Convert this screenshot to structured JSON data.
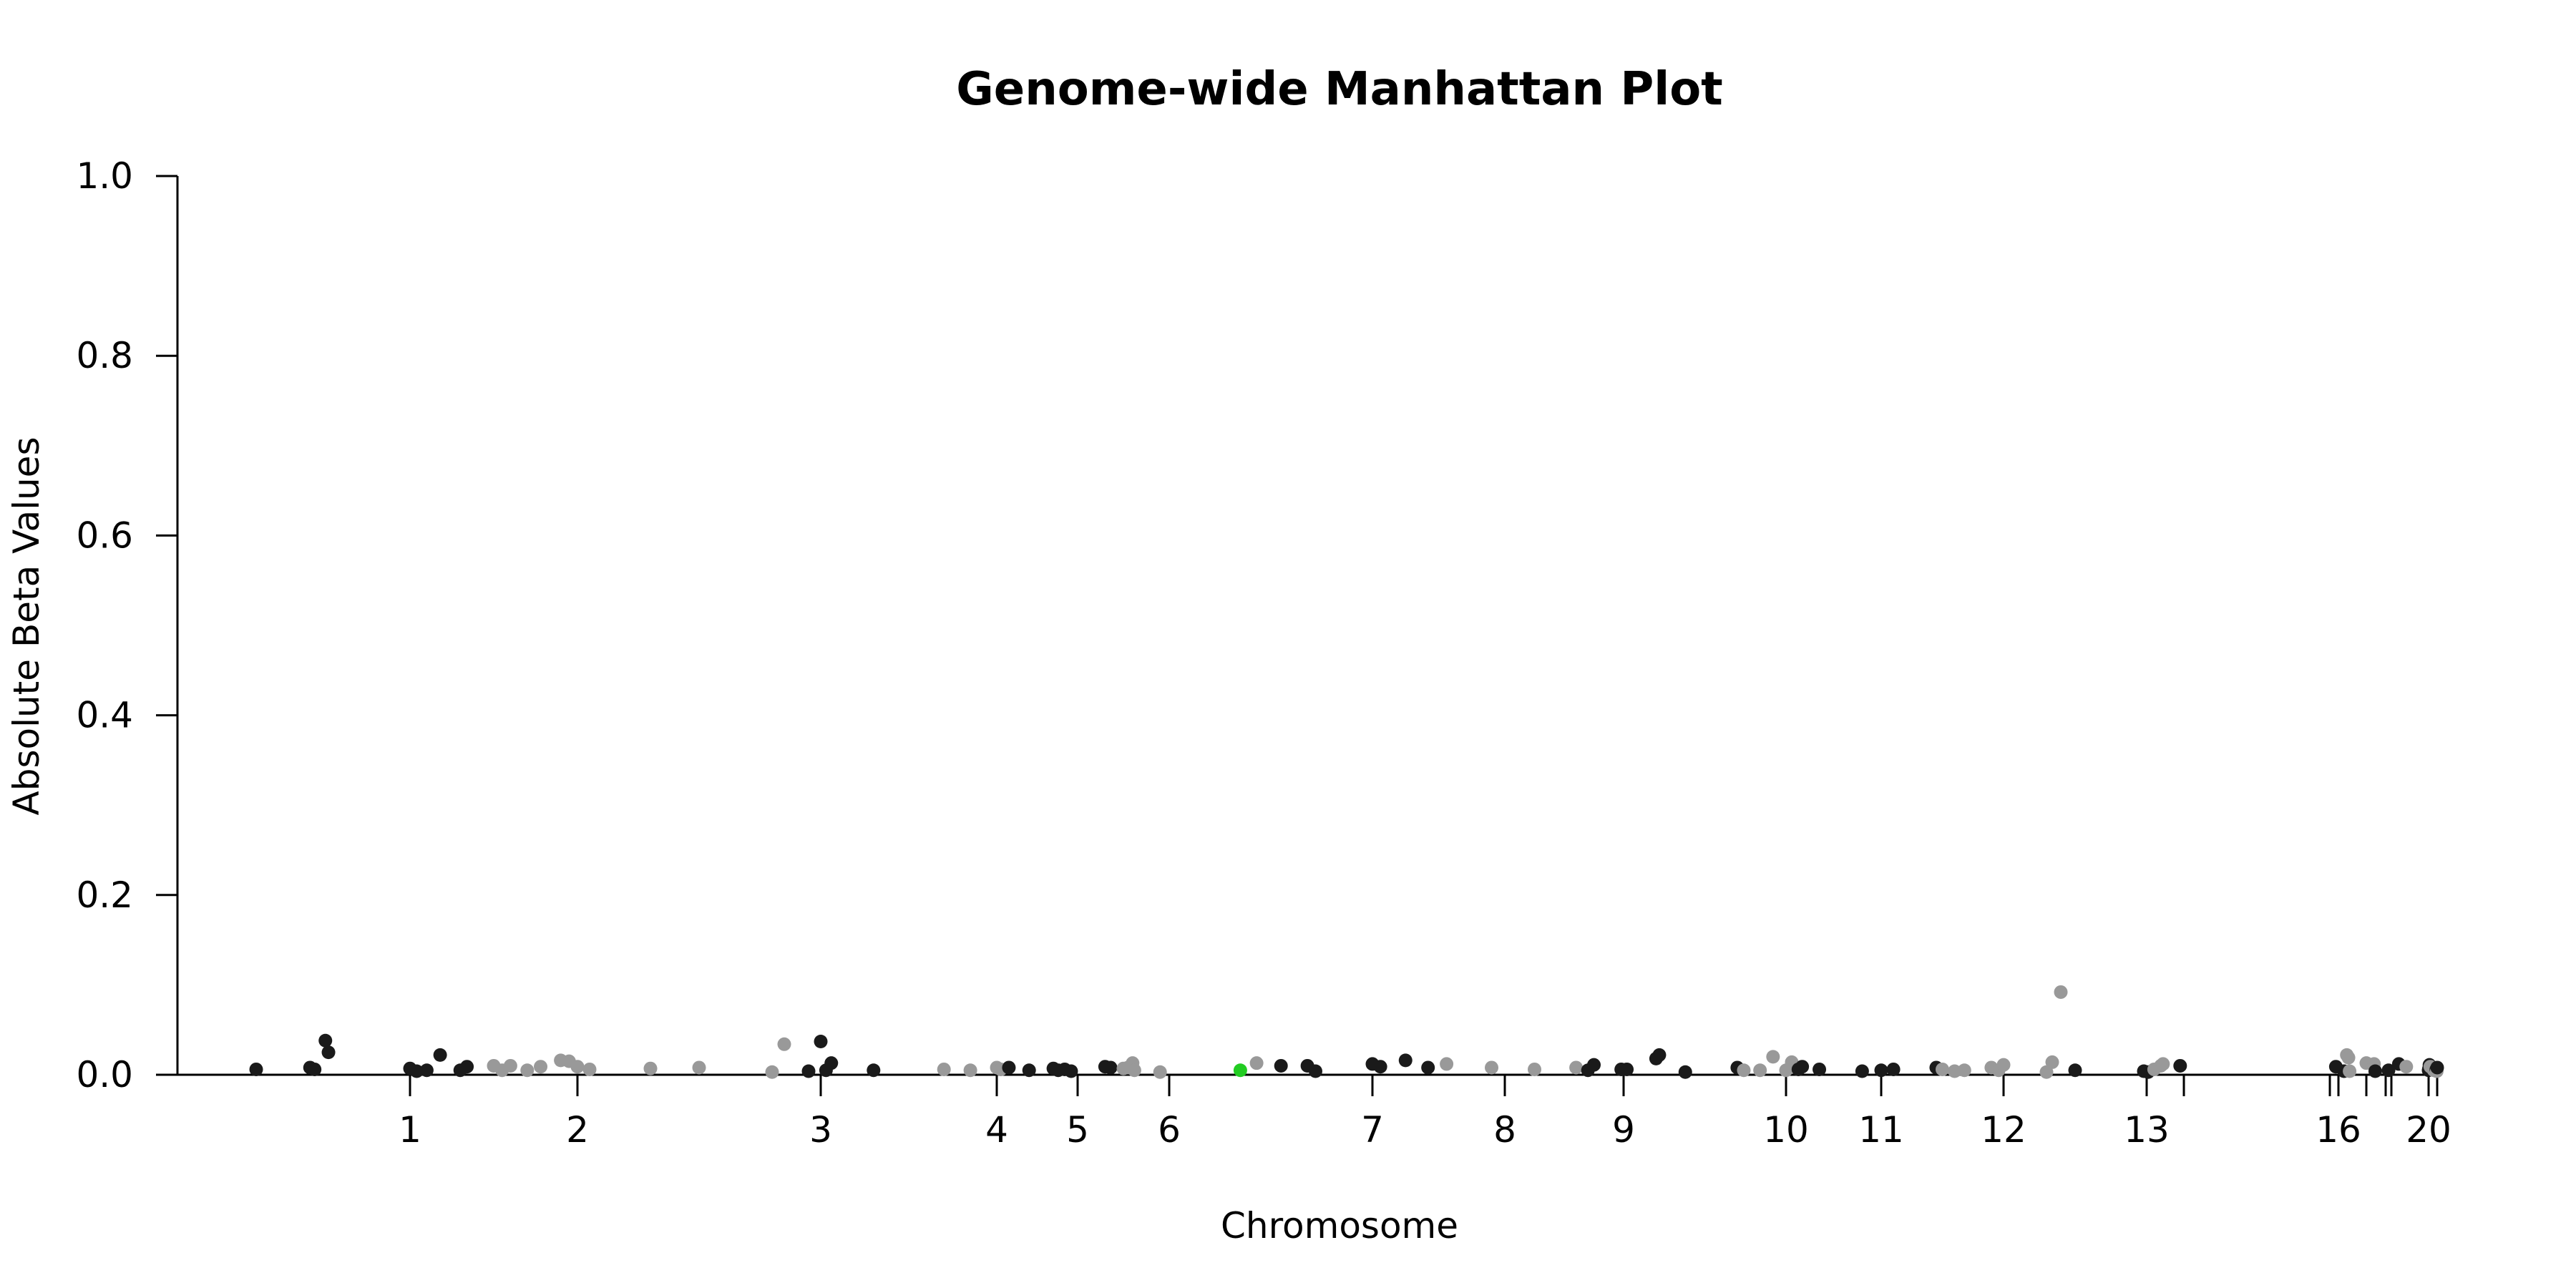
{
  "chart_data": {
    "type": "scatter",
    "title": "Genome-wide Manhattan Plot",
    "xlabel": "Chromosome",
    "ylabel": "Absolute Beta Values",
    "ylim": [
      0,
      1.0
    ],
    "yticks": [
      "0.0",
      "0.2",
      "0.4",
      "0.6",
      "0.8",
      "1.0"
    ],
    "xticks": [
      {
        "label": "1",
        "pos": 1
      },
      {
        "label": "2",
        "pos": 2
      },
      {
        "label": "3",
        "pos": 3
      },
      {
        "label": "4",
        "pos": 4
      },
      {
        "label": "5",
        "pos": 5
      },
      {
        "label": "6",
        "pos": 6
      },
      {
        "label": "7",
        "pos": 7
      },
      {
        "label": "8",
        "pos": 8
      },
      {
        "label": "9",
        "pos": 9
      },
      {
        "label": "10",
        "pos": 10
      },
      {
        "label": "11",
        "pos": 11
      },
      {
        "label": "12",
        "pos": 12
      },
      {
        "label": "13",
        "pos": 13
      },
      {
        "label": "",
        "pos": 14
      },
      {
        "label": "",
        "pos": 15
      },
      {
        "label": "16",
        "pos": 16
      },
      {
        "label": "",
        "pos": 17
      },
      {
        "label": "",
        "pos": 18
      },
      {
        "label": "",
        "pos": 19
      },
      {
        "label": "20",
        "pos": 20
      },
      {
        "label": "",
        "pos": 21
      }
    ],
    "colors": {
      "dark": "#1a1a1a",
      "light": "#999999",
      "highlight": "#22cc22"
    },
    "grid": false,
    "points": [
      {
        "x": 0.0,
        "y": 0.006,
        "c": "dark"
      },
      {
        "x": 0.35,
        "y": 0.008,
        "c": "dark"
      },
      {
        "x": 0.38,
        "y": 0.006,
        "c": "dark"
      },
      {
        "x": 0.45,
        "y": 0.038,
        "c": "dark"
      },
      {
        "x": 0.47,
        "y": 0.025,
        "c": "dark"
      },
      {
        "x": 1.0,
        "y": 0.007,
        "c": "dark"
      },
      {
        "x": 1.04,
        "y": 0.004,
        "c": "dark"
      },
      {
        "x": 1.1,
        "y": 0.005,
        "c": "dark"
      },
      {
        "x": 1.18,
        "y": 0.022,
        "c": "dark"
      },
      {
        "x": 1.3,
        "y": 0.005,
        "c": "dark"
      },
      {
        "x": 1.34,
        "y": 0.009,
        "c": "dark"
      },
      {
        "x": 1.5,
        "y": 0.01,
        "c": "light"
      },
      {
        "x": 1.55,
        "y": 0.005,
        "c": "light"
      },
      {
        "x": 1.6,
        "y": 0.01,
        "c": "light"
      },
      {
        "x": 1.7,
        "y": 0.005,
        "c": "light"
      },
      {
        "x": 1.78,
        "y": 0.009,
        "c": "light"
      },
      {
        "x": 1.9,
        "y": 0.016,
        "c": "light"
      },
      {
        "x": 1.95,
        "y": 0.015,
        "c": "light"
      },
      {
        "x": 2.0,
        "y": 0.009,
        "c": "light"
      },
      {
        "x": 2.05,
        "y": 0.006,
        "c": "light"
      },
      {
        "x": 2.3,
        "y": 0.007,
        "c": "light"
      },
      {
        "x": 2.5,
        "y": 0.008,
        "c": "light"
      },
      {
        "x": 2.8,
        "y": 0.003,
        "c": "light"
      },
      {
        "x": 2.85,
        "y": 0.034,
        "c": "light"
      },
      {
        "x": 2.95,
        "y": 0.004,
        "c": "dark"
      },
      {
        "x": 3.0,
        "y": 0.037,
        "c": "dark"
      },
      {
        "x": 3.03,
        "y": 0.005,
        "c": "dark"
      },
      {
        "x": 3.06,
        "y": 0.013,
        "c": "dark"
      },
      {
        "x": 3.3,
        "y": 0.005,
        "c": "dark"
      },
      {
        "x": 3.7,
        "y": 0.006,
        "c": "light"
      },
      {
        "x": 3.85,
        "y": 0.005,
        "c": "light"
      },
      {
        "x": 4.0,
        "y": 0.008,
        "c": "light"
      },
      {
        "x": 4.05,
        "y": 0.006,
        "c": "light"
      },
      {
        "x": 4.15,
        "y": 0.008,
        "c": "dark"
      },
      {
        "x": 4.4,
        "y": 0.005,
        "c": "dark"
      },
      {
        "x": 4.7,
        "y": 0.007,
        "c": "dark"
      },
      {
        "x": 4.76,
        "y": 0.005,
        "c": "dark"
      },
      {
        "x": 4.84,
        "y": 0.006,
        "c": "dark"
      },
      {
        "x": 4.92,
        "y": 0.004,
        "c": "dark"
      },
      {
        "x": 5.3,
        "y": 0.009,
        "c": "dark"
      },
      {
        "x": 5.36,
        "y": 0.008,
        "c": "dark"
      },
      {
        "x": 5.5,
        "y": 0.007,
        "c": "light"
      },
      {
        "x": 5.55,
        "y": 0.008,
        "c": "light"
      },
      {
        "x": 5.6,
        "y": 0.013,
        "c": "light"
      },
      {
        "x": 5.62,
        "y": 0.005,
        "c": "light"
      },
      {
        "x": 5.9,
        "y": 0.003,
        "c": "light"
      },
      {
        "x": 6.35,
        "y": 0.005,
        "c": "highlight"
      },
      {
        "x": 6.43,
        "y": 0.013,
        "c": "light"
      },
      {
        "x": 6.55,
        "y": 0.01,
        "c": "dark"
      },
      {
        "x": 6.68,
        "y": 0.01,
        "c": "dark"
      },
      {
        "x": 6.72,
        "y": 0.004,
        "c": "dark"
      },
      {
        "x": 7.0,
        "y": 0.012,
        "c": "dark"
      },
      {
        "x": 7.06,
        "y": 0.009,
        "c": "dark"
      },
      {
        "x": 7.25,
        "y": 0.016,
        "c": "dark"
      },
      {
        "x": 7.42,
        "y": 0.008,
        "c": "dark"
      },
      {
        "x": 7.56,
        "y": 0.012,
        "c": "light"
      },
      {
        "x": 7.9,
        "y": 0.008,
        "c": "light"
      },
      {
        "x": 8.25,
        "y": 0.006,
        "c": "light"
      },
      {
        "x": 8.6,
        "y": 0.008,
        "c": "light"
      },
      {
        "x": 8.7,
        "y": 0.005,
        "c": "dark"
      },
      {
        "x": 8.75,
        "y": 0.011,
        "c": "dark"
      },
      {
        "x": 8.98,
        "y": 0.006,
        "c": "dark"
      },
      {
        "x": 9.02,
        "y": 0.006,
        "c": "dark"
      },
      {
        "x": 9.2,
        "y": 0.018,
        "c": "dark"
      },
      {
        "x": 9.22,
        "y": 0.022,
        "c": "dark"
      },
      {
        "x": 9.38,
        "y": 0.003,
        "c": "dark"
      },
      {
        "x": 9.7,
        "y": 0.008,
        "c": "dark"
      },
      {
        "x": 9.74,
        "y": 0.005,
        "c": "light"
      },
      {
        "x": 9.84,
        "y": 0.005,
        "c": "light"
      },
      {
        "x": 9.92,
        "y": 0.02,
        "c": "light"
      },
      {
        "x": 10.0,
        "y": 0.005,
        "c": "light"
      },
      {
        "x": 10.06,
        "y": 0.014,
        "c": "light"
      },
      {
        "x": 10.13,
        "y": 0.006,
        "c": "dark"
      },
      {
        "x": 10.17,
        "y": 0.009,
        "c": "dark"
      },
      {
        "x": 10.35,
        "y": 0.006,
        "c": "dark"
      },
      {
        "x": 10.8,
        "y": 0.004,
        "c": "dark"
      },
      {
        "x": 11.0,
        "y": 0.005,
        "c": "dark"
      },
      {
        "x": 11.1,
        "y": 0.006,
        "c": "dark"
      },
      {
        "x": 11.45,
        "y": 0.008,
        "c": "dark"
      },
      {
        "x": 11.5,
        "y": 0.006,
        "c": "light"
      },
      {
        "x": 11.6,
        "y": 0.004,
        "c": "light"
      },
      {
        "x": 11.68,
        "y": 0.005,
        "c": "light"
      },
      {
        "x": 11.9,
        "y": 0.008,
        "c": "light"
      },
      {
        "x": 11.96,
        "y": 0.005,
        "c": "light"
      },
      {
        "x": 12.0,
        "y": 0.011,
        "c": "light"
      },
      {
        "x": 12.3,
        "y": 0.003,
        "c": "light"
      },
      {
        "x": 12.34,
        "y": 0.014,
        "c": "light"
      },
      {
        "x": 12.4,
        "y": 0.092,
        "c": "light"
      },
      {
        "x": 12.5,
        "y": 0.005,
        "c": "dark"
      },
      {
        "x": 12.98,
        "y": 0.004,
        "c": "dark"
      },
      {
        "x": 13.04,
        "y": 0.003,
        "c": "dark"
      },
      {
        "x": 13.2,
        "y": 0.006,
        "c": "light"
      },
      {
        "x": 13.38,
        "y": 0.01,
        "c": "light"
      },
      {
        "x": 13.44,
        "y": 0.012,
        "c": "light"
      },
      {
        "x": 13.9,
        "y": 0.01,
        "c": "dark"
      },
      {
        "x": 15.7,
        "y": 0.009,
        "c": "dark"
      },
      {
        "x": 16.2,
        "y": 0.004,
        "c": "dark"
      },
      {
        "x": 16.3,
        "y": 0.022,
        "c": "light"
      },
      {
        "x": 16.36,
        "y": 0.019,
        "c": "light"
      },
      {
        "x": 16.4,
        "y": 0.004,
        "c": "light"
      },
      {
        "x": 17.0,
        "y": 0.013,
        "c": "light"
      },
      {
        "x": 17.4,
        "y": 0.012,
        "c": "light"
      },
      {
        "x": 17.46,
        "y": 0.004,
        "c": "dark"
      },
      {
        "x": 18.5,
        "y": 0.005,
        "c": "dark"
      },
      {
        "x": 19.2,
        "y": 0.012,
        "c": "dark"
      },
      {
        "x": 19.4,
        "y": 0.009,
        "c": "light"
      },
      {
        "x": 20.0,
        "y": 0.005,
        "c": "dark"
      },
      {
        "x": 20.05,
        "y": 0.007,
        "c": "dark"
      },
      {
        "x": 20.1,
        "y": 0.011,
        "c": "dark"
      },
      {
        "x": 20.2,
        "y": 0.009,
        "c": "light"
      },
      {
        "x": 20.4,
        "y": 0.008,
        "c": "light"
      },
      {
        "x": 20.6,
        "y": 0.005,
        "c": "light"
      },
      {
        "x": 20.9,
        "y": 0.006,
        "c": "dark"
      },
      {
        "x": 20.95,
        "y": 0.004,
        "c": "light"
      },
      {
        "x": 21.0,
        "y": 0.008,
        "c": "dark"
      }
    ]
  }
}
